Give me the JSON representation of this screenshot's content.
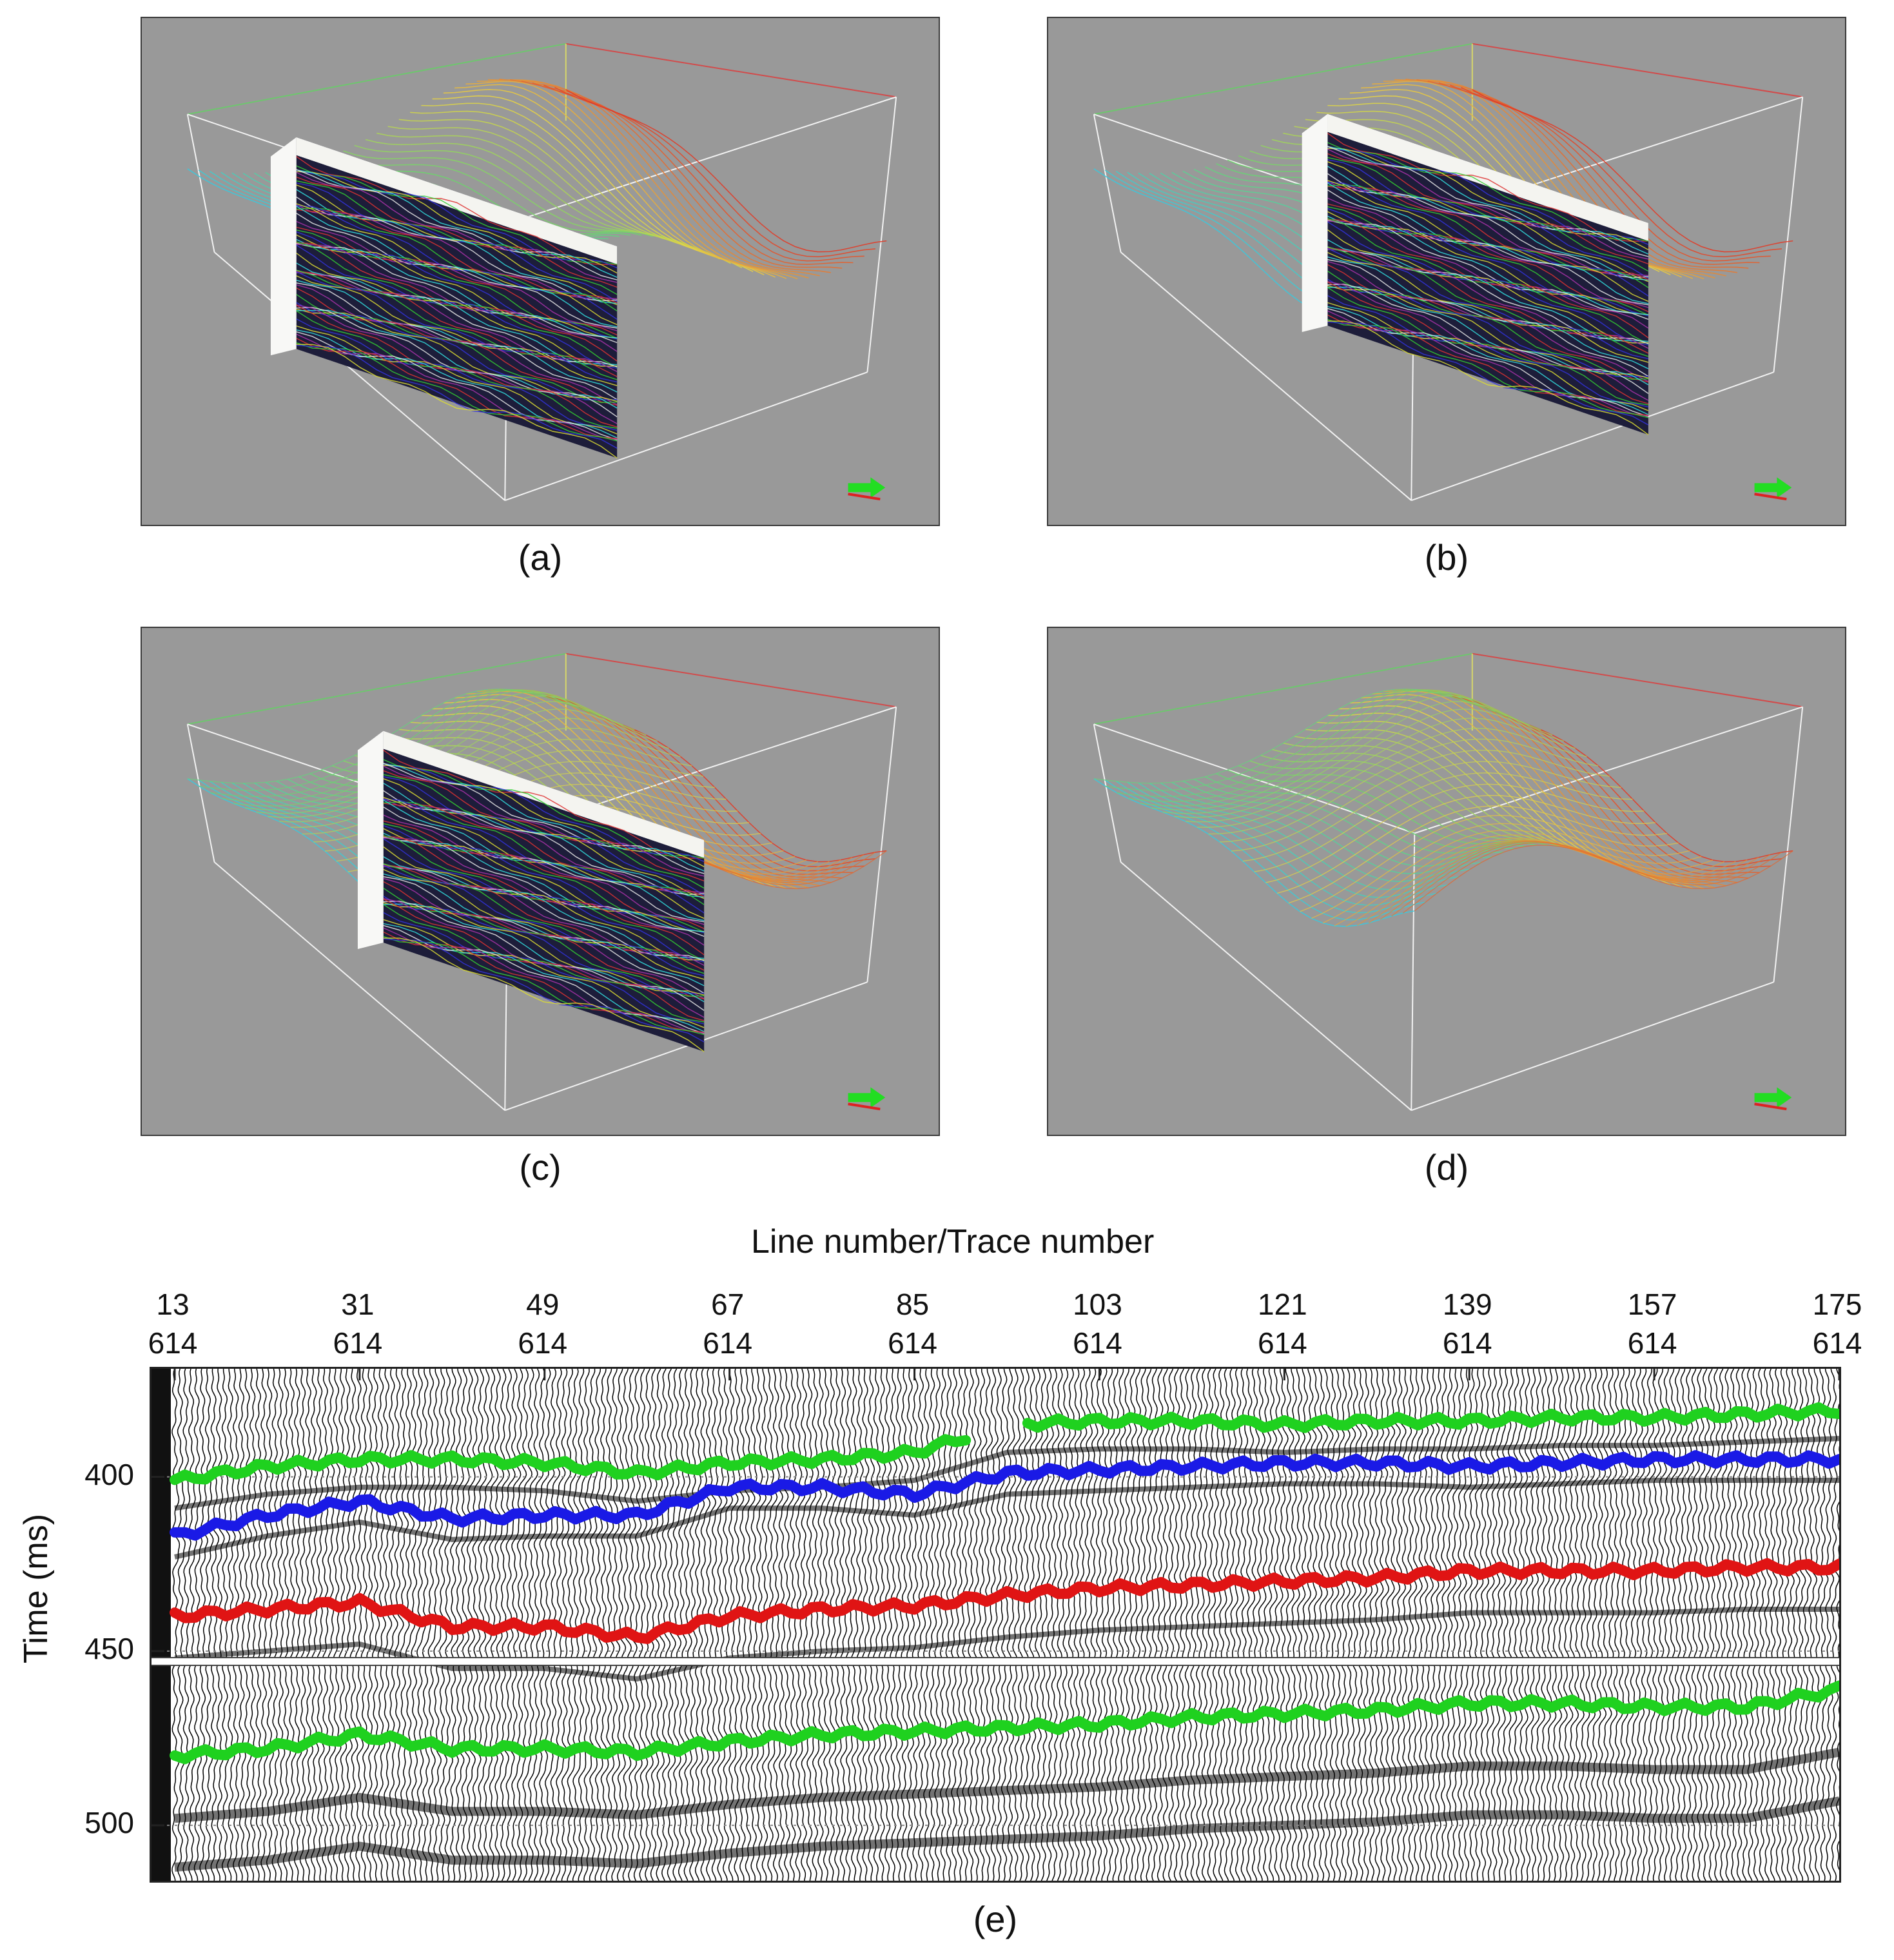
{
  "figure": {
    "panels": [
      {
        "id": "a",
        "caption": "(a)",
        "slice_position": 0.22,
        "surface_extent": "profile"
      },
      {
        "id": "b",
        "caption": "(b)",
        "slice_position": 0.55,
        "surface_extent": "partial"
      },
      {
        "id": "c",
        "caption": "(c)",
        "slice_position": 0.45,
        "surface_extent": "partial-grid"
      },
      {
        "id": "d",
        "caption": "(d)",
        "slice_position": null,
        "surface_extent": "full-grid"
      }
    ],
    "bottom_caption": "(e)"
  },
  "chart_data": {
    "type": "line",
    "title": "",
    "xlabel": "Line number/Trace number",
    "ylabel": "Time (ms)",
    "x_ticks_top": [
      "13",
      "31",
      "49",
      "67",
      "85",
      "103",
      "121",
      "139",
      "157",
      "175"
    ],
    "x_ticks_bottom": [
      "614",
      "614",
      "614",
      "614",
      "614",
      "614",
      "614",
      "614",
      "614",
      "614"
    ],
    "x_range": [
      13,
      175
    ],
    "y_ticks": [
      "400",
      "450",
      "500"
    ],
    "y_range": [
      369,
      517
    ],
    "y_inverted": true,
    "x": [
      13,
      22,
      31,
      40,
      49,
      58,
      67,
      76,
      85,
      94,
      103,
      112,
      121,
      130,
      139,
      148,
      157,
      166,
      175
    ],
    "series": [
      {
        "color": "#1fd11f",
        "values": [
          401,
          397,
          395,
          395,
          396,
          399,
          396,
          395,
          393,
          385,
          384,
          384,
          385,
          384,
          384,
          383,
          383,
          382,
          381
        ],
        "gap_between": [
          90,
          96
        ]
      },
      {
        "color": "#1a1ae6",
        "values": [
          417,
          411,
          407,
          412,
          411,
          411,
          403,
          403,
          405,
          399,
          398,
          397,
          396,
          396,
          397,
          396,
          395,
          395,
          395
        ]
      },
      {
        "color": "#e01414",
        "values": [
          440,
          438,
          436,
          443,
          443,
          446,
          440,
          438,
          437,
          434,
          432,
          431,
          430,
          429,
          427,
          427,
          427,
          426,
          426
        ]
      },
      {
        "color": "#1fd11f",
        "values": [
          480,
          478,
          474,
          478,
          478,
          479,
          476,
          474,
          473,
          472,
          471,
          469,
          468,
          467,
          465,
          465,
          466,
          466,
          461
        ]
      }
    ],
    "grid": "dotted horizontal at y ticks",
    "horizontal_divider_at": 453
  },
  "colors": {
    "panel_bg": "#999999",
    "box_edge": "#f2f2f2",
    "box_green_edge": "#6ec66e",
    "box_red_edge": "#d24b4b",
    "box_yellow_edge": "#d6d66a"
  }
}
